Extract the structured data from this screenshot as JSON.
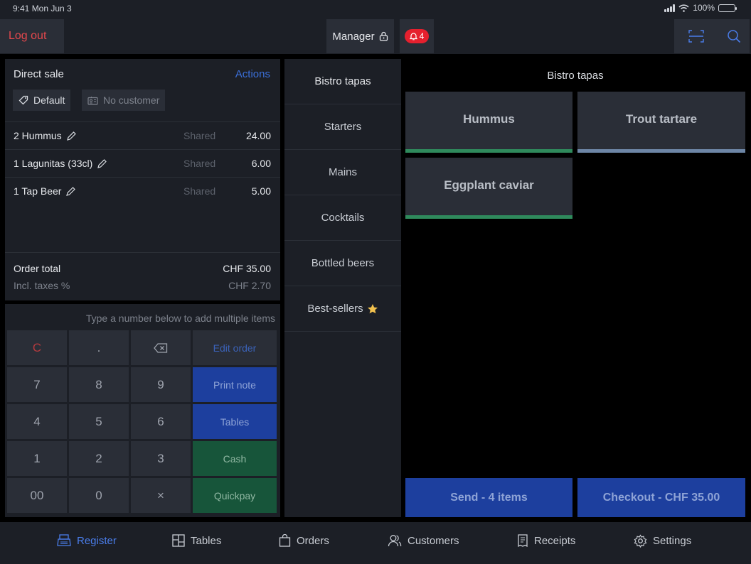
{
  "status_bar": {
    "time": "9:41  Mon Jun 3",
    "battery": "100%"
  },
  "header": {
    "logout_label": "Log out",
    "user_label": "Manager",
    "notification_count": "4"
  },
  "order": {
    "title": "Direct sale",
    "actions_label": "Actions",
    "price_list_chip": "Default",
    "customer_chip": "No customer",
    "lines": [
      {
        "qty_name": "2 Hummus",
        "shared": "Shared",
        "price": "24.00"
      },
      {
        "qty_name": "1 Lagunitas (33cl)",
        "shared": "Shared",
        "price": "6.00"
      },
      {
        "qty_name": "1 Tap Beer",
        "shared": "Shared",
        "price": "5.00"
      }
    ],
    "total_label": "Order total",
    "total_value": "CHF 35.00",
    "tax_label": "Incl. taxes %",
    "tax_value": "CHF 2.70"
  },
  "keypad": {
    "hint": "Type a number below to add multiple items",
    "keys": {
      "clear": "C",
      "dot": ".",
      "k7": "7",
      "k8": "8",
      "k9": "9",
      "k4": "4",
      "k5": "5",
      "k6": "6",
      "k1": "1",
      "k2": "2",
      "k3": "3",
      "k00": "00",
      "k0": "0",
      "times": "×"
    },
    "actions": {
      "edit_order": "Edit order",
      "print_note": "Print note",
      "tables": "Tables",
      "cash": "Cash",
      "quickpay": "Quickpay"
    }
  },
  "categories": [
    {
      "label": "Bistro tapas"
    },
    {
      "label": "Starters"
    },
    {
      "label": "Mains"
    },
    {
      "label": "Cocktails"
    },
    {
      "label": "Bottled beers"
    },
    {
      "label": "Best-sellers"
    }
  ],
  "products": {
    "title": "Bistro tapas",
    "items": [
      {
        "name": "Hummus",
        "bar_color": "#2f8a5c"
      },
      {
        "name": "Trout tartare",
        "bar_color": "#6d86a6"
      },
      {
        "name": "Eggplant caviar",
        "bar_color": "#2f8a5c"
      }
    ],
    "send_label": "Send - 4 items",
    "checkout_label": "Checkout - CHF 35.00"
  },
  "nav": {
    "register": "Register",
    "tables": "Tables",
    "orders": "Orders",
    "customers": "Customers",
    "receipts": "Receipts",
    "settings": "Settings"
  },
  "colors": {
    "accent_blue": "#4a7dea",
    "danger_red": "#e5484d",
    "button_blue": "#1d3f9e",
    "button_green": "#17553a",
    "star_yellow": "#f2c14e"
  }
}
